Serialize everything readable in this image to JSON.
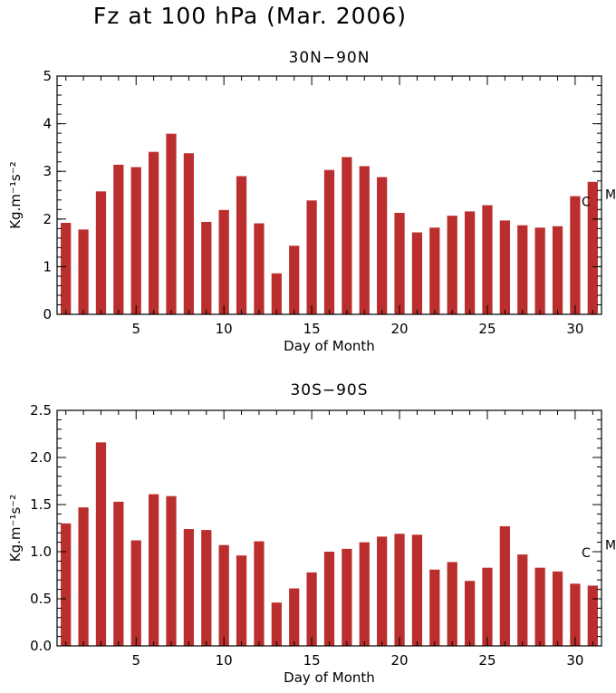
{
  "figure": {
    "title": "Fz at 100 hPa (Mar. 2006)"
  },
  "colors": {
    "bar": "#bb2e2e",
    "axis": "#000000"
  },
  "chart_data": [
    {
      "type": "bar",
      "title": "30N−90N",
      "xlabel": "Day of Month",
      "ylabel": "Kg.m⁻¹s⁻²",
      "xlim": [
        0.5,
        31.5
      ],
      "ylim": [
        0,
        5
      ],
      "yticks": [
        0,
        1,
        2,
        3,
        4,
        5
      ],
      "ytick_labels": [
        "0",
        "1",
        "2",
        "3",
        "4",
        "5"
      ],
      "xticks": [
        5,
        10,
        15,
        20,
        25,
        30
      ],
      "xtick_labels": [
        "5",
        "10",
        "15",
        "20",
        "25",
        "30"
      ],
      "x": [
        1,
        2,
        3,
        4,
        5,
        6,
        7,
        8,
        9,
        10,
        11,
        12,
        13,
        14,
        15,
        16,
        17,
        18,
        19,
        20,
        21,
        22,
        23,
        24,
        25,
        26,
        27,
        28,
        29,
        30,
        31
      ],
      "values": [
        1.92,
        1.78,
        2.58,
        3.14,
        3.09,
        3.41,
        3.79,
        3.38,
        1.94,
        2.19,
        2.9,
        1.91,
        0.86,
        1.44,
        2.39,
        3.03,
        3.3,
        3.11,
        2.88,
        2.13,
        1.72,
        1.82,
        2.07,
        2.16,
        2.29,
        1.97,
        1.87,
        1.82,
        1.85,
        2.48,
        2.78
      ],
      "annotations": [
        {
          "text": "C",
          "y": 2.37,
          "side": "inside"
        },
        {
          "text": "M",
          "y": 2.52,
          "side": "outside"
        }
      ],
      "grid": false
    },
    {
      "type": "bar",
      "title": "30S−90S",
      "xlabel": "Day of Month",
      "ylabel": "Kg.m⁻¹s⁻²",
      "xlim": [
        0.5,
        31.5
      ],
      "ylim": [
        0,
        2.5
      ],
      "yticks": [
        0,
        0.5,
        1.0,
        1.5,
        2.0,
        2.5
      ],
      "ytick_labels": [
        "0.0",
        "0.5",
        "1.0",
        "1.5",
        "2.0",
        "2.5"
      ],
      "xticks": [
        5,
        10,
        15,
        20,
        25,
        30
      ],
      "xtick_labels": [
        "5",
        "10",
        "15",
        "20",
        "25",
        "30"
      ],
      "x": [
        1,
        2,
        3,
        4,
        5,
        6,
        7,
        8,
        9,
        10,
        11,
        12,
        13,
        14,
        15,
        16,
        17,
        18,
        19,
        20,
        21,
        22,
        23,
        24,
        25,
        26,
        27,
        28,
        29,
        30,
        31
      ],
      "values": [
        1.3,
        1.47,
        2.16,
        1.53,
        1.12,
        1.61,
        1.59,
        1.24,
        1.23,
        1.07,
        0.96,
        1.11,
        0.46,
        0.61,
        0.78,
        1.0,
        1.03,
        1.1,
        1.16,
        1.19,
        1.18,
        0.81,
        0.89,
        0.69,
        0.83,
        1.27,
        0.97,
        0.83,
        0.79,
        0.66,
        0.64
      ],
      "annotations": [
        {
          "text": "C",
          "y": 0.99,
          "side": "inside"
        },
        {
          "text": "M",
          "y": 1.07,
          "side": "outside"
        }
      ],
      "grid": false
    }
  ]
}
